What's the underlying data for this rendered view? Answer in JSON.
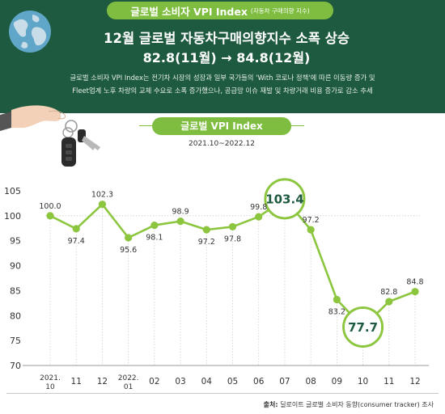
{
  "header": {
    "badge_title": "글로벌 소비자 VPI Index",
    "badge_subtitle": "(자동차 구매의향 지수)",
    "headline": "12월 글로벌 자동차구매의향지수 소폭 상승",
    "subheadline": "82.8(11월) → 84.8(12월)",
    "description_line1": "글로벌 소비자 VPI Index는 전기차 시장의 성장과 일부 국가들의 'With 코로나 정책'에 따른 이동량 증가 및",
    "description_line2": "Fleet업계 노후 차량의 교체 수요로 소폭 증가했으나, 공급망 이슈 재발 및 차량거래 비용 증가로 감소 추세"
  },
  "chart_data": {
    "type": "line",
    "title": "글로벌 VPI Index",
    "subtitle": "2021.10~2022.12",
    "categories": [
      "2021.\n10",
      "11",
      "12",
      "2022.\n01",
      "02",
      "03",
      "04",
      "05",
      "06",
      "07",
      "08",
      "09",
      "10",
      "11",
      "12"
    ],
    "values": [
      100.0,
      97.4,
      102.3,
      95.6,
      98.1,
      98.9,
      97.2,
      97.8,
      99.8,
      103.4,
      97.2,
      83.2,
      77.7,
      82.8,
      84.8
    ],
    "data_labels": [
      "100.0",
      "97.4",
      "102.3",
      "95.6",
      "98.1",
      "98.9",
      "97.2",
      "97.8",
      "99.8",
      "103.4",
      "97.2",
      "83.2",
      "77.7",
      "82.8",
      "84.8"
    ],
    "highlighted": [
      9,
      12
    ],
    "ylim": [
      70,
      105
    ],
    "yticks": [
      70,
      75,
      80,
      85,
      90,
      95,
      100,
      105
    ],
    "reference_line": 100,
    "grid": "vertical dotted",
    "colors": {
      "line": "#8cc63f",
      "marker": "#8cc63f",
      "highlight_text": "#1e5a3f",
      "header_bg": "#1e5a3f"
    }
  },
  "footer": {
    "source_label": "출처:",
    "source_text": "딜로이트 글로벌 소비자 동향(consumer tracker) 조사"
  }
}
